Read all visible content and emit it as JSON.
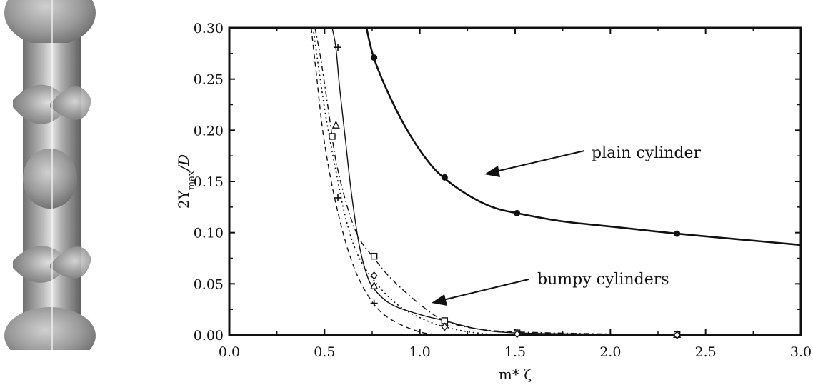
{
  "chart_data": {
    "type": "line",
    "xlabel": "m* ζ",
    "ylabel": {
      "main": "2Y",
      "sub": "max",
      "tail": "/D"
    },
    "xlim": [
      0.0,
      3.0
    ],
    "ylim": [
      0.0,
      0.3
    ],
    "x_ticks": [
      "0.0",
      "0.5",
      "1.0",
      "1.5",
      "2.0",
      "2.5",
      "3.0"
    ],
    "y_ticks": [
      "0.00",
      "0.05",
      "0.10",
      "0.15",
      "0.20",
      "0.25",
      "0.30"
    ],
    "grid": false,
    "annotations": [
      "plain cylinder",
      "bumpy cylinders"
    ],
    "series": [
      {
        "marker": "circle",
        "style": "solid-thick",
        "curve": [
          [
            0.72,
            0.3
          ],
          [
            0.76,
            0.27
          ],
          [
            0.85,
            0.23
          ],
          [
            0.95,
            0.195
          ],
          [
            1.05,
            0.168
          ],
          [
            1.13,
            0.153
          ],
          [
            1.25,
            0.137
          ],
          [
            1.38,
            0.125
          ],
          [
            1.51,
            0.119
          ],
          [
            1.75,
            0.111
          ],
          [
            2.0,
            0.106
          ],
          [
            2.35,
            0.099
          ],
          [
            2.7,
            0.093
          ],
          [
            3.0,
            0.088
          ]
        ],
        "points": [
          [
            0.76,
            0.271
          ],
          [
            1.13,
            0.154
          ],
          [
            1.51,
            0.119
          ],
          [
            2.35,
            0.099
          ]
        ]
      },
      {
        "marker": "triangle",
        "style": "solid",
        "curve": [
          [
            0.54,
            0.3
          ],
          [
            0.56,
            0.28
          ],
          [
            0.58,
            0.24
          ],
          [
            0.61,
            0.19
          ],
          [
            0.64,
            0.14
          ],
          [
            0.68,
            0.09
          ],
          [
            0.72,
            0.06
          ],
          [
            0.76,
            0.045
          ],
          [
            0.85,
            0.03
          ],
          [
            1.0,
            0.02
          ],
          [
            1.13,
            0.014
          ],
          [
            1.3,
            0.006
          ],
          [
            1.51,
            0.002
          ],
          [
            2.0,
            0.0008
          ],
          [
            2.35,
            0.0005
          ]
        ],
        "points": [
          [
            0.56,
            0.205
          ],
          [
            0.76,
            0.048
          ],
          [
            1.13,
            0.012
          ],
          [
            1.51,
            0.002
          ],
          [
            2.35,
            0.0005
          ]
        ]
      },
      {
        "marker": "plus",
        "style": "dashed",
        "curve": [
          [
            0.43,
            0.3
          ],
          [
            0.46,
            0.25
          ],
          [
            0.49,
            0.2
          ],
          [
            0.53,
            0.155
          ],
          [
            0.57,
            0.12
          ],
          [
            0.62,
            0.085
          ],
          [
            0.68,
            0.055
          ],
          [
            0.76,
            0.03
          ],
          [
            0.85,
            0.015
          ],
          [
            1.0,
            0.003
          ],
          [
            1.13,
            0.0
          ]
        ],
        "points": [
          [
            0.57,
            0.281
          ],
          [
            0.57,
            0.134
          ],
          [
            0.76,
            0.031
          ]
        ]
      },
      {
        "marker": "square",
        "style": "dash-dot",
        "curve": [
          [
            0.45,
            0.3
          ],
          [
            0.48,
            0.27
          ],
          [
            0.52,
            0.22
          ],
          [
            0.56,
            0.17
          ],
          [
            0.62,
            0.125
          ],
          [
            0.68,
            0.095
          ],
          [
            0.76,
            0.075
          ],
          [
            0.85,
            0.055
          ],
          [
            1.0,
            0.03
          ],
          [
            1.13,
            0.014
          ],
          [
            1.3,
            0.006
          ],
          [
            1.51,
            0.003
          ],
          [
            2.0,
            0.001
          ],
          [
            2.35,
            0.0008
          ]
        ],
        "points": [
          [
            0.54,
            0.194
          ],
          [
            0.76,
            0.077
          ],
          [
            1.13,
            0.014
          ],
          [
            1.51,
            0.002
          ],
          [
            2.35,
            0.0005
          ]
        ]
      },
      {
        "marker": "diamond",
        "style": "dotted",
        "curve": [
          [
            0.44,
            0.3
          ],
          [
            0.47,
            0.26
          ],
          [
            0.51,
            0.21
          ],
          [
            0.56,
            0.16
          ],
          [
            0.61,
            0.115
          ],
          [
            0.67,
            0.08
          ],
          [
            0.76,
            0.053
          ],
          [
            0.88,
            0.03
          ],
          [
            1.0,
            0.017
          ],
          [
            1.13,
            0.008
          ],
          [
            1.3,
            0.002
          ],
          [
            1.51,
            0.0005
          ],
          [
            2.35,
            0.0
          ]
        ],
        "points": [
          [
            0.76,
            0.058
          ],
          [
            1.13,
            0.008
          ],
          [
            1.51,
            0.001
          ],
          [
            2.35,
            0.0
          ]
        ]
      }
    ]
  },
  "image": {
    "description_icon": "bumpy-cylinder-icon"
  }
}
